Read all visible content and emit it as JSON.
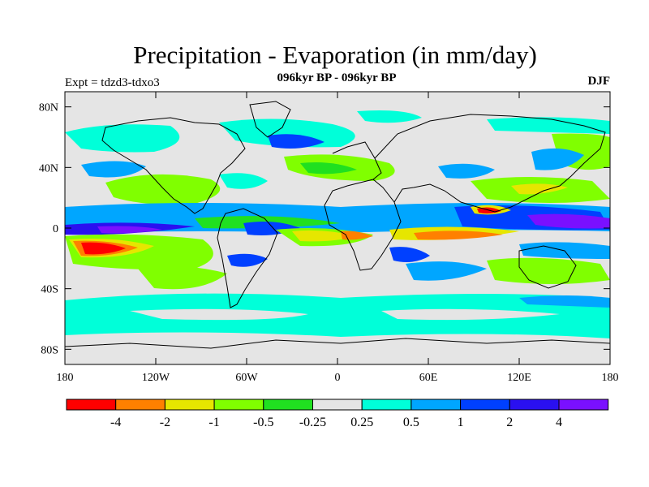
{
  "title": "Precipitation - Evaporation (in mm/day)",
  "subtitle": "096kyr BP - 096kyr BP",
  "experiment": "Expt = tdzd3-tdxo3",
  "season": "DJF",
  "map": {
    "projection": "cylindrical equidistant",
    "lon_range": [
      -180,
      180
    ],
    "lat_range": [
      -90,
      90
    ],
    "lat_ticks": [
      {
        "value": 80,
        "label": "80N"
      },
      {
        "value": 40,
        "label": "40N"
      },
      {
        "value": 0,
        "label": "0"
      },
      {
        "value": -40,
        "label": "40S"
      },
      {
        "value": -80,
        "label": "80S"
      }
    ],
    "lon_ticks": [
      {
        "value": -180,
        "label": "180"
      },
      {
        "value": -120,
        "label": "120W"
      },
      {
        "value": -60,
        "label": "60W"
      },
      {
        "value": 0,
        "label": "0"
      },
      {
        "value": 60,
        "label": "60E"
      },
      {
        "value": 120,
        "label": "120E"
      },
      {
        "value": 180,
        "label": "180"
      }
    ],
    "background_color": "#e5e5e5"
  },
  "colorbar": {
    "colors": [
      "#ff0000",
      "#ff8000",
      "#e6e600",
      "#80ff00",
      "#20e020",
      "#e5e5e5",
      "#00ffd9",
      "#00a6ff",
      "#0040ff",
      "#2a10f0",
      "#7a10ff"
    ],
    "labels": [
      "-4",
      "-2",
      "-1",
      "-0.5",
      "-0.25",
      "0.25",
      "0.5",
      "1",
      "2",
      "4"
    ]
  }
}
